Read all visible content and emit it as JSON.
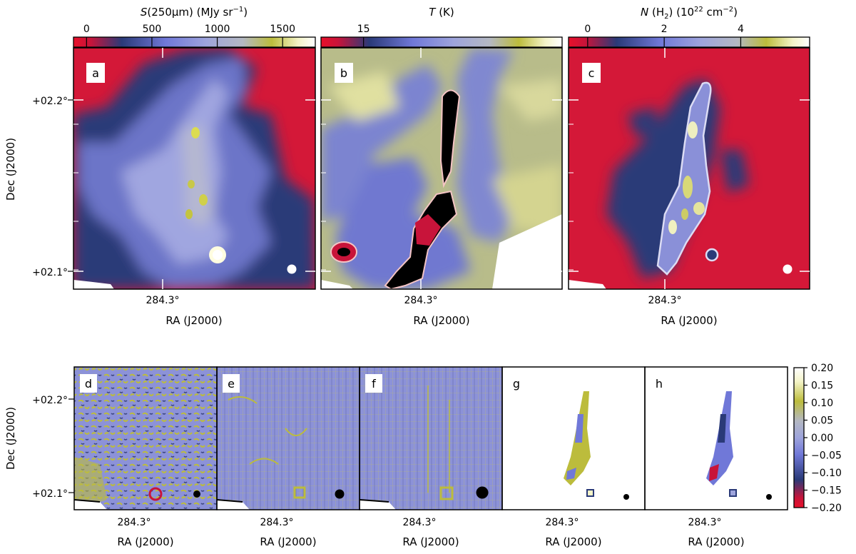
{
  "colors": {
    "scale": [
      "#e8102a",
      "#c8143a",
      "#2a3a78",
      "#7078d8",
      "#9ea4dc",
      "#b4b8c2",
      "#bcbc3c",
      "#f4f4c8",
      "#ffffff"
    ],
    "contour": "#f4c4c4",
    "contour_c": "#dcdcf4",
    "beam": "#ffffff",
    "beam_small": "#000000"
  },
  "chart_data": [
    {
      "type": "heatmap",
      "panel": "a",
      "colorbar": {
        "label_main": "S",
        "label_rest": "(250μm) (MJy sr",
        "label_sup": "−1",
        "label_end": ")",
        "range": [
          -100,
          1750
        ],
        "ticks": [
          0,
          500,
          1000,
          1500
        ],
        "tick_labels": [
          "0",
          "500",
          "1000",
          "1500"
        ]
      },
      "xlabel": "RA (J2000)",
      "xtick_label": "284.3°",
      "ylabel": "Dec (J2000)",
      "ytick_labels": [
        "+02.2°",
        "+02.1°"
      ],
      "ytick_values": [
        2.2,
        2.1
      ]
    },
    {
      "type": "heatmap",
      "panel": "b",
      "colorbar": {
        "label_main": "T",
        "label_rest": " (K)",
        "range": [
          13.5,
          22
        ],
        "ticks": [
          15
        ],
        "tick_labels": [
          "15"
        ]
      },
      "xlabel": "RA (J2000)",
      "xtick_label": "284.3°"
    },
    {
      "type": "heatmap",
      "panel": "c",
      "colorbar": {
        "label_main": "N",
        "label_rest": " (H",
        "label_sub": "2",
        "label_rest2": ") (10",
        "label_sup": "22",
        "label_end": " cm",
        "label_sup2": "−2",
        "label_close": ")",
        "range": [
          -0.5,
          5.8
        ],
        "ticks": [
          0,
          2,
          4
        ],
        "tick_labels": [
          "0",
          "2",
          "4"
        ]
      },
      "xlabel": "RA (J2000)",
      "xtick_label": "284.3°"
    },
    {
      "type": "heatmap",
      "panels": [
        "d",
        "e",
        "f",
        "g",
        "h"
      ],
      "xlabel": "RA (J2000)",
      "xtick_label": "284.3°",
      "ylabel": "Dec (J2000)",
      "ytick_labels": [
        "+02.2°",
        "+02.1°"
      ],
      "colorbar": {
        "range": [
          -0.2,
          0.2
        ],
        "ticks": [
          0.2,
          0.15,
          0.1,
          0.05,
          0.0,
          -0.05,
          -0.1,
          -0.15,
          -0.2
        ],
        "tick_labels": [
          "0.20",
          "0.15",
          "0.10",
          "0.05",
          "0.00",
          "−0.05",
          "−0.10",
          "−0.15",
          "−0.20"
        ]
      }
    }
  ]
}
